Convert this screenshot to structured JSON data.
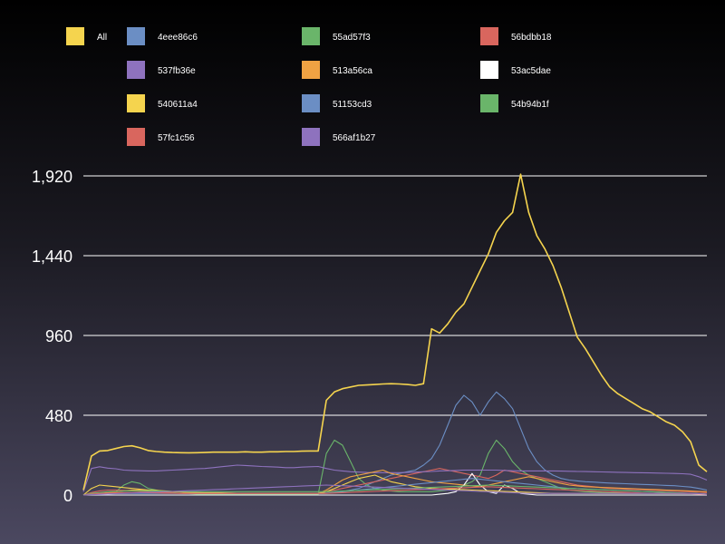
{
  "chart_data": {
    "type": "line",
    "title": "",
    "xlabel": "",
    "ylabel": "",
    "ylim": [
      0,
      1920
    ],
    "yticks": [
      0,
      480,
      960,
      1440,
      1920
    ],
    "ytick_labels": [
      "0",
      "480",
      "960",
      "1,440",
      "1,920"
    ],
    "grid": true,
    "legend_position": "top",
    "series": [
      {
        "name": "All",
        "color": "#f5d44e",
        "values": [
          30,
          235,
          265,
          268,
          280,
          292,
          296,
          284,
          268,
          262,
          258,
          256,
          255,
          254,
          255,
          256,
          258,
          258,
          258,
          258,
          260,
          258,
          258,
          260,
          260,
          262,
          262,
          264,
          265,
          265,
          570,
          620,
          640,
          650,
          660,
          662,
          665,
          668,
          670,
          668,
          665,
          660,
          670,
          1000,
          975,
          1030,
          1100,
          1150,
          1250,
          1350,
          1450,
          1580,
          1650,
          1700,
          1930,
          1700,
          1560,
          1480,
          1380,
          1250,
          1100,
          950,
          880,
          800,
          720,
          650,
          610,
          580,
          550,
          520,
          500,
          470,
          440,
          420,
          380,
          320,
          180,
          140
        ]
      },
      {
        "name": "4eee86c6",
        "color": "#6b8ec4",
        "values": [
          0,
          0,
          0,
          0,
          0,
          0,
          0,
          0,
          0,
          0,
          0,
          0,
          0,
          0,
          0,
          0,
          0,
          0,
          0,
          0,
          0,
          0,
          0,
          0,
          0,
          0,
          0,
          5,
          8,
          10,
          12,
          15,
          20,
          30,
          40,
          60,
          80,
          100,
          120,
          130,
          140,
          150,
          180,
          220,
          300,
          420,
          540,
          600,
          560,
          480,
          560,
          620,
          580,
          520,
          400,
          280,
          200,
          150,
          120,
          100,
          90,
          85,
          80,
          78,
          75,
          72,
          70,
          68,
          66,
          64,
          62,
          60,
          58,
          56,
          52,
          48,
          40,
          30
        ]
      },
      {
        "name": "55ad57f3",
        "color": "#6ab56a",
        "values": [
          0,
          0,
          0,
          5,
          20,
          60,
          80,
          70,
          40,
          30,
          20,
          15,
          10,
          8,
          6,
          5,
          5,
          5,
          5,
          5,
          5,
          5,
          5,
          5,
          5,
          5,
          5,
          5,
          5,
          5,
          250,
          330,
          300,
          200,
          100,
          60,
          40,
          30,
          25,
          20,
          20,
          20,
          20,
          20,
          25,
          30,
          40,
          60,
          80,
          120,
          250,
          330,
          280,
          200,
          150,
          120,
          100,
          80,
          60,
          40,
          30,
          25,
          20,
          18,
          16,
          15,
          14,
          13,
          12,
          11,
          10,
          10,
          10,
          10,
          10,
          10,
          8,
          5
        ]
      },
      {
        "name": "56bdbb18",
        "color": "#d9665e",
        "values": [
          0,
          15,
          25,
          30,
          30,
          28,
          25,
          22,
          20,
          18,
          15,
          12,
          10,
          10,
          10,
          10,
          10,
          10,
          10,
          10,
          10,
          10,
          10,
          10,
          10,
          10,
          10,
          10,
          10,
          10,
          20,
          30,
          40,
          50,
          60,
          70,
          80,
          90,
          100,
          110,
          120,
          130,
          140,
          150,
          160,
          150,
          140,
          130,
          120,
          110,
          100,
          120,
          150,
          140,
          130,
          120,
          110,
          100,
          90,
          80,
          70,
          60,
          55,
          50,
          45,
          40,
          38,
          36,
          34,
          32,
          30,
          28,
          26,
          24,
          22,
          20,
          18,
          15
        ]
      },
      {
        "name": "537fb36e",
        "color": "#8e72be",
        "values": [
          20,
          160,
          170,
          162,
          158,
          150,
          148,
          146,
          145,
          145,
          148,
          150,
          152,
          155,
          158,
          160,
          165,
          170,
          175,
          180,
          178,
          175,
          172,
          170,
          168,
          165,
          165,
          168,
          170,
          172,
          160,
          150,
          145,
          140,
          138,
          136,
          135,
          135,
          135,
          135,
          136,
          138,
          140,
          142,
          145,
          146,
          148,
          150,
          150,
          150,
          150,
          150,
          148,
          146,
          145,
          145,
          145,
          145,
          145,
          144,
          143,
          142,
          141,
          140,
          139,
          138,
          137,
          136,
          135,
          134,
          133,
          132,
          131,
          130,
          128,
          125,
          110,
          90
        ]
      },
      {
        "name": "513a56ca",
        "color": "#f0a243",
        "values": [
          0,
          5,
          10,
          15,
          20,
          25,
          30,
          30,
          28,
          25,
          22,
          20,
          18,
          15,
          12,
          10,
          10,
          10,
          10,
          10,
          10,
          10,
          10,
          10,
          10,
          10,
          10,
          10,
          10,
          10,
          30,
          60,
          90,
          110,
          120,
          130,
          140,
          150,
          130,
          120,
          110,
          100,
          90,
          80,
          75,
          70,
          65,
          60,
          55,
          50,
          60,
          70,
          80,
          90,
          100,
          110,
          100,
          90,
          80,
          70,
          60,
          55,
          50,
          48,
          46,
          44,
          42,
          40,
          38,
          36,
          34,
          32,
          30,
          28,
          26,
          24,
          22,
          20
        ]
      },
      {
        "name": "53ac5dae",
        "color": "#ffffff",
        "values": [
          0,
          0,
          0,
          0,
          0,
          0,
          0,
          0,
          0,
          0,
          0,
          0,
          0,
          0,
          0,
          0,
          0,
          0,
          0,
          0,
          0,
          0,
          0,
          0,
          0,
          0,
          0,
          0,
          0,
          0,
          0,
          0,
          0,
          0,
          0,
          0,
          0,
          0,
          0,
          0,
          0,
          0,
          0,
          0,
          5,
          10,
          20,
          60,
          130,
          60,
          20,
          10,
          60,
          40,
          10,
          5,
          0,
          0,
          0,
          0,
          0,
          0,
          0,
          0,
          0,
          0,
          0,
          0,
          0,
          0,
          0,
          0,
          0,
          0,
          0,
          0,
          0,
          0
        ]
      },
      {
        "name": "540611a4",
        "color": "#f5d44e",
        "values": [
          0,
          40,
          60,
          55,
          50,
          45,
          40,
          35,
          30,
          28,
          25,
          22,
          20,
          18,
          16,
          15,
          14,
          13,
          12,
          11,
          10,
          10,
          10,
          10,
          10,
          10,
          10,
          10,
          10,
          10,
          20,
          40,
          60,
          80,
          100,
          110,
          120,
          100,
          80,
          70,
          60,
          50,
          45,
          40,
          38,
          36,
          34,
          32,
          30,
          28,
          26,
          24,
          22,
          20,
          18,
          16,
          14,
          12,
          10,
          10,
          10,
          10,
          10,
          10,
          10,
          10,
          10,
          10,
          10,
          10,
          10,
          10,
          10,
          10,
          10,
          10,
          8,
          5
        ]
      },
      {
        "name": "51153cd3",
        "color": "#6b8ec4",
        "values": [
          0,
          5,
          8,
          10,
          10,
          10,
          10,
          10,
          10,
          10,
          10,
          10,
          10,
          10,
          10,
          10,
          10,
          10,
          10,
          10,
          10,
          10,
          10,
          10,
          10,
          10,
          10,
          10,
          10,
          10,
          10,
          15,
          20,
          25,
          30,
          35,
          40,
          45,
          50,
          55,
          60,
          65,
          70,
          75,
          80,
          85,
          90,
          95,
          100,
          95,
          90,
          85,
          80,
          75,
          70,
          65,
          60,
          55,
          50,
          45,
          40,
          38,
          36,
          34,
          32,
          30,
          28,
          26,
          24,
          22,
          20,
          18,
          16,
          14,
          12,
          10,
          8,
          5
        ]
      },
      {
        "name": "54b94b1f",
        "color": "#6ab56a",
        "values": [
          0,
          10,
          15,
          20,
          22,
          24,
          25,
          25,
          25,
          24,
          23,
          22,
          21,
          20,
          20,
          20,
          20,
          20,
          20,
          20,
          20,
          20,
          20,
          20,
          20,
          20,
          20,
          20,
          20,
          20,
          20,
          22,
          24,
          26,
          28,
          30,
          32,
          34,
          36,
          38,
          40,
          42,
          44,
          46,
          48,
          50,
          52,
          54,
          56,
          58,
          60,
          58,
          56,
          54,
          52,
          50,
          48,
          46,
          44,
          42,
          40,
          38,
          36,
          34,
          32,
          30,
          28,
          26,
          24,
          22,
          20,
          18,
          16,
          14,
          12,
          10,
          8,
          5
        ]
      },
      {
        "name": "57fc1c56",
        "color": "#d9665e",
        "values": [
          0,
          5,
          10,
          12,
          14,
          15,
          15,
          15,
          14,
          13,
          12,
          11,
          10,
          10,
          10,
          10,
          10,
          10,
          10,
          10,
          10,
          10,
          10,
          10,
          10,
          10,
          10,
          10,
          10,
          10,
          10,
          12,
          14,
          16,
          18,
          20,
          22,
          24,
          26,
          28,
          30,
          32,
          34,
          36,
          38,
          40,
          42,
          44,
          46,
          48,
          50,
          48,
          46,
          44,
          42,
          40,
          38,
          36,
          34,
          32,
          30,
          28,
          26,
          24,
          22,
          20,
          18,
          16,
          14,
          12,
          10,
          10,
          10,
          10,
          10,
          8,
          6,
          4
        ]
      },
      {
        "name": "566af1b27",
        "color": "#8e72be",
        "values": [
          0,
          2,
          4,
          6,
          8,
          10,
          12,
          14,
          16,
          18,
          20,
          22,
          24,
          26,
          28,
          30,
          32,
          34,
          36,
          38,
          40,
          42,
          44,
          46,
          48,
          50,
          52,
          54,
          56,
          58,
          60,
          58,
          56,
          54,
          52,
          50,
          48,
          46,
          44,
          42,
          40,
          38,
          36,
          34,
          32,
          30,
          28,
          26,
          24,
          22,
          20,
          18,
          16,
          14,
          12,
          10,
          10,
          10,
          10,
          10,
          10,
          10,
          10,
          10,
          10,
          10,
          10,
          10,
          10,
          10,
          10,
          10,
          10,
          10,
          10,
          10,
          8,
          5
        ]
      }
    ]
  }
}
